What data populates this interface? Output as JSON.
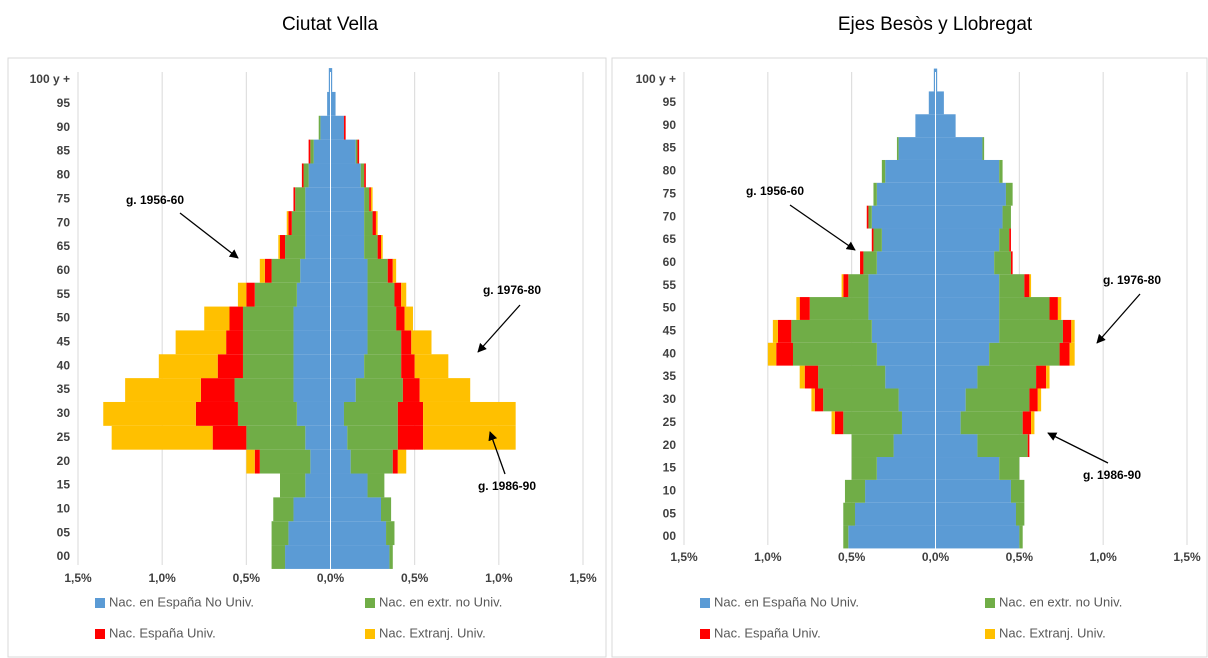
{
  "chart_data": [
    {
      "type": "pyramid",
      "title": "Ciutat Vella",
      "categories": [
        "00",
        "05",
        "10",
        "15",
        "20",
        "25",
        "30",
        "35",
        "40",
        "45",
        "50",
        "55",
        "60",
        "65",
        "70",
        "75",
        "80",
        "85",
        "90",
        "95",
        "100 y +"
      ],
      "xlim": [
        -1.5,
        1.5
      ],
      "xticks": [
        {
          "value": -1.5,
          "label": "1,5%"
        },
        {
          "value": -1,
          "label": "1,0%"
        },
        {
          "value": -0.5,
          "label": "0,5%"
        },
        {
          "value": 0,
          "label": "0,0%"
        },
        {
          "value": 0.5,
          "label": "0,5%"
        },
        {
          "value": 1,
          "label": "1,0%"
        },
        {
          "value": 1.5,
          "label": "1,5%"
        }
      ],
      "grid": true,
      "series": [
        {
          "name": "Nac. en España No Univ.",
          "color": "#5b9bd5",
          "values": [
            0.35,
            0.33,
            0.3,
            0.22,
            0.12,
            0.1,
            0.08,
            0.15,
            0.2,
            0.22,
            0.22,
            0.22,
            0.22,
            0.2,
            0.2,
            0.2,
            0.18,
            0.15,
            0.08,
            0.03,
            0.01
          ],
          "left_values": [
            -0.27,
            -0.25,
            -0.22,
            -0.15,
            -0.12,
            -0.15,
            -0.2,
            -0.22,
            -0.22,
            -0.22,
            -0.22,
            -0.2,
            -0.18,
            -0.15,
            -0.15,
            -0.15,
            -0.13,
            -0.1,
            -0.06,
            -0.02,
            -0.01
          ]
        },
        {
          "name": "Nac. en extr. no Univ.",
          "color": "#70ad47",
          "values": [
            0.02,
            0.05,
            0.06,
            0.1,
            0.25,
            0.3,
            0.32,
            0.28,
            0.22,
            0.2,
            0.17,
            0.16,
            0.12,
            0.08,
            0.05,
            0.03,
            0.02,
            0.01,
            0,
            0,
            0
          ],
          "left_values": [
            -0.08,
            -0.1,
            -0.12,
            -0.15,
            -0.3,
            -0.35,
            -0.35,
            -0.35,
            -0.3,
            -0.3,
            -0.3,
            -0.25,
            -0.17,
            -0.12,
            -0.08,
            -0.06,
            -0.03,
            -0.02,
            -0.01,
            0,
            0
          ]
        },
        {
          "name": "Nac. España Univ.",
          "color": "#ff0000",
          "values": [
            0,
            0,
            0,
            0,
            0.03,
            0.15,
            0.15,
            0.1,
            0.08,
            0.06,
            0.05,
            0.04,
            0.03,
            0.02,
            0.02,
            0.01,
            0.01,
            0.01,
            0.01,
            0,
            0
          ],
          "left_values": [
            0,
            0,
            0,
            0,
            -0.03,
            -0.2,
            -0.25,
            -0.2,
            -0.15,
            -0.1,
            -0.08,
            -0.05,
            -0.04,
            -0.03,
            -0.02,
            -0.01,
            -0.01,
            -0.01,
            0,
            0,
            0
          ]
        },
        {
          "name": "Nac. Extranj. Univ.",
          "color": "#ffc000",
          "values": [
            0,
            0,
            0,
            0,
            0.05,
            0.55,
            0.55,
            0.3,
            0.2,
            0.12,
            0.05,
            0.03,
            0.02,
            0.01,
            0.01,
            0.01,
            0,
            0,
            0,
            0,
            0
          ],
          "left_values": [
            0,
            0,
            0,
            0,
            -0.05,
            -0.6,
            -0.55,
            -0.45,
            -0.35,
            -0.3,
            -0.15,
            -0.05,
            -0.03,
            -0.01,
            -0.01,
            0,
            0,
            0,
            0,
            0,
            0
          ]
        }
      ],
      "annotations": [
        "g. 1956-60",
        "g. 1976-80",
        "g. 1986-90"
      ]
    },
    {
      "type": "pyramid",
      "title": "Ejes Besòs y Llobregat",
      "categories": [
        "00",
        "05",
        "10",
        "15",
        "20",
        "25",
        "30",
        "35",
        "40",
        "45",
        "50",
        "55",
        "60",
        "65",
        "70",
        "75",
        "80",
        "85",
        "90",
        "95",
        "100 y +"
      ],
      "xlim": [
        -1.5,
        1.5
      ],
      "xticks": [
        {
          "value": -1.5,
          "label": "1,5%"
        },
        {
          "value": -1,
          "label": "1,0%"
        },
        {
          "value": -0.5,
          "label": "0,5%"
        },
        {
          "value": 0,
          "label": "0,0%"
        },
        {
          "value": 0.5,
          "label": "0,5%"
        },
        {
          "value": 1,
          "label": "1,0%"
        },
        {
          "value": 1.5,
          "label": "1,5%"
        }
      ],
      "grid": true,
      "series": [
        {
          "name": "Nac. en España No Univ.",
          "color": "#5b9bd5",
          "values": [
            0.5,
            0.48,
            0.45,
            0.38,
            0.25,
            0.15,
            0.18,
            0.25,
            0.32,
            0.38,
            0.38,
            0.38,
            0.35,
            0.38,
            0.4,
            0.42,
            0.38,
            0.28,
            0.12,
            0.05,
            0.01
          ],
          "left_values": [
            -0.52,
            -0.48,
            -0.42,
            -0.35,
            -0.25,
            -0.2,
            -0.22,
            -0.3,
            -0.35,
            -0.38,
            -0.4,
            -0.4,
            -0.35,
            -0.32,
            -0.38,
            -0.35,
            -0.3,
            -0.22,
            -0.12,
            -0.04,
            -0.01
          ]
        },
        {
          "name": "Nac. en extr. no Univ.",
          "color": "#70ad47",
          "values": [
            0.02,
            0.05,
            0.08,
            0.12,
            0.3,
            0.37,
            0.38,
            0.35,
            0.42,
            0.38,
            0.3,
            0.15,
            0.1,
            0.06,
            0.05,
            0.04,
            0.02,
            0.01,
            0,
            0,
            0
          ],
          "left_values": [
            -0.03,
            -0.07,
            -0.12,
            -0.15,
            -0.25,
            -0.35,
            -0.45,
            -0.4,
            -0.5,
            -0.48,
            -0.35,
            -0.12,
            -0.08,
            -0.05,
            -0.02,
            -0.02,
            -0.02,
            -0.01,
            0,
            0,
            0
          ]
        },
        {
          "name": "Nac. España Univ.",
          "color": "#ff0000",
          "values": [
            0,
            0,
            0,
            0,
            0.01,
            0.05,
            0.05,
            0.06,
            0.06,
            0.05,
            0.05,
            0.03,
            0.01,
            0.01,
            0,
            0,
            0,
            0,
            0,
            0,
            0
          ],
          "left_values": [
            0,
            0,
            0,
            0,
            0,
            -0.05,
            -0.05,
            -0.08,
            -0.1,
            -0.08,
            -0.06,
            -0.03,
            -0.02,
            -0.01,
            -0.01,
            0,
            0,
            0,
            0,
            0,
            0
          ]
        },
        {
          "name": "Nac. Extranj. Univ.",
          "color": "#ffc000",
          "values": [
            0,
            0,
            0,
            0,
            0,
            0.02,
            0.02,
            0.02,
            0.03,
            0.02,
            0.02,
            0.01,
            0,
            0,
            0,
            0,
            0,
            0,
            0,
            0,
            0
          ],
          "left_values": [
            0,
            0,
            0,
            0,
            0,
            -0.02,
            -0.02,
            -0.03,
            -0.05,
            -0.03,
            -0.02,
            -0.01,
            0,
            0,
            0,
            0,
            0,
            0,
            0,
            0,
            0
          ]
        }
      ],
      "annotations": [
        "g. 1956-60",
        "g. 1976-80",
        "g. 1986-90"
      ]
    }
  ]
}
